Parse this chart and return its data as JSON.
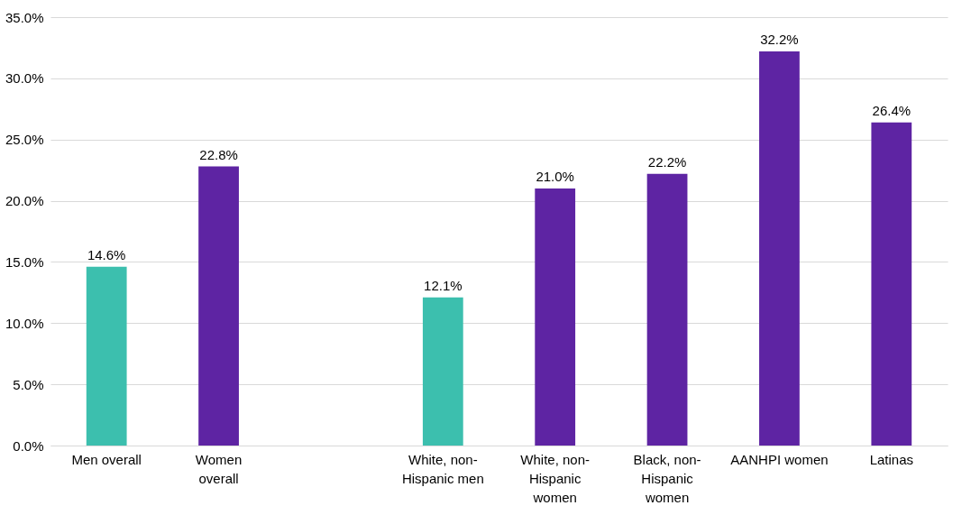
{
  "chart_data": {
    "type": "bar",
    "categories": [
      "Men overall",
      "Women overall",
      null,
      "White, non-Hispanic men",
      "White, non-Hispanic women",
      "Black, non-Hispanic women",
      "AANHPI women",
      "Latinas"
    ],
    "values": [
      14.6,
      22.8,
      null,
      12.1,
      21.0,
      22.2,
      32.2,
      26.4
    ],
    "colors": [
      "#3cbfae",
      "#5e24a3",
      null,
      "#3cbfae",
      "#5e24a3",
      "#5e24a3",
      "#5e24a3",
      "#5e24a3"
    ],
    "value_labels": [
      "14.6%",
      "22.8%",
      null,
      "12.1%",
      "21.0%",
      "22.2%",
      "32.2%",
      "26.4%"
    ],
    "ylim": [
      0,
      35
    ],
    "yticks": [
      {
        "value": 0,
        "label": "0.0%"
      },
      {
        "value": 5,
        "label": "5.0%"
      },
      {
        "value": 10,
        "label": "10.0%"
      },
      {
        "value": 15,
        "label": "15.0%"
      },
      {
        "value": 20,
        "label": "20.0%"
      },
      {
        "value": 25,
        "label": "25.0%"
      },
      {
        "value": 30,
        "label": "30.0%"
      },
      {
        "value": 35,
        "label": "35.0%"
      }
    ],
    "grid": "y"
  }
}
